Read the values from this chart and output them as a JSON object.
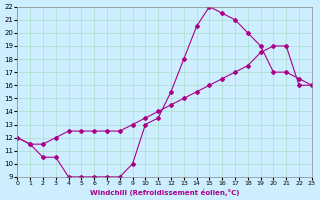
{
  "xlabel": "Windchill (Refroidissement éolien,°C)",
  "ylabel": "",
  "bg_color": "#cceeff",
  "grid_color": "#aaddcc",
  "line_color": "#aa0088",
  "xlim": [
    0,
    23
  ],
  "ylim": [
    9,
    22
  ],
  "xticks": [
    0,
    1,
    2,
    3,
    4,
    5,
    6,
    7,
    8,
    9,
    10,
    11,
    12,
    13,
    14,
    15,
    16,
    17,
    18,
    19,
    20,
    21,
    22,
    23
  ],
  "yticks": [
    9,
    10,
    11,
    12,
    13,
    14,
    15,
    16,
    17,
    18,
    19,
    20,
    21,
    22
  ],
  "series1_x": [
    0,
    1,
    2,
    3,
    4,
    5,
    6,
    7,
    8,
    9,
    10,
    11,
    12,
    13,
    14,
    15,
    16,
    17,
    18,
    19,
    20,
    21,
    22,
    23
  ],
  "series1_y": [
    12,
    11.5,
    10.5,
    10.5,
    9.0,
    9.0,
    9.0,
    9.0,
    9.0,
    10.0,
    13.0,
    13.5,
    15.5,
    18.0,
    20.5,
    22.0,
    21.5,
    21.0,
    20.0,
    19.0,
    17.0,
    17.0,
    16.5,
    16.0
  ],
  "series2_x": [
    0,
    1,
    2,
    3,
    4,
    5,
    6,
    7,
    8,
    9,
    10,
    11,
    12,
    13,
    14,
    15,
    16,
    17,
    18,
    19,
    20,
    21,
    22,
    23
  ],
  "series2_y": [
    12,
    11.5,
    11.5,
    12.0,
    12.5,
    12.5,
    12.5,
    12.5,
    12.5,
    13.0,
    13.5,
    14.0,
    14.5,
    15.0,
    15.5,
    16.0,
    16.5,
    17.0,
    17.5,
    18.5,
    19.0,
    19.0,
    16.0,
    16.0
  ]
}
